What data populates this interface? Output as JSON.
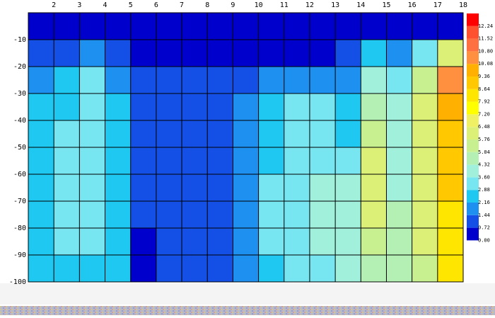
{
  "chart_data": {
    "type": "contour",
    "xlim": [
      1,
      18
    ],
    "ylim": [
      -100,
      0
    ],
    "xticks": [
      2,
      3,
      4,
      5,
      6,
      7,
      8,
      9,
      10,
      11,
      12,
      13,
      14,
      15,
      16,
      17,
      18
    ],
    "yticks": [
      -10,
      -20,
      -30,
      -40,
      -50,
      -60,
      -70,
      -80,
      -90,
      -100
    ],
    "grid": true,
    "x": [
      1.5,
      2.5,
      3.5,
      4.5,
      5.5,
      6.5,
      7.5,
      8.5,
      9.5,
      10.5,
      11.5,
      12.5,
      13.5,
      14.5,
      15.5,
      16.5,
      17.5
    ],
    "y": [
      -5,
      -15,
      -25,
      -35,
      -45,
      -55,
      -65,
      -75,
      -85,
      -95
    ],
    "z": [
      [
        0.3,
        0.3,
        0.3,
        0.3,
        0.3,
        0.3,
        0.3,
        0.3,
        0.3,
        0.3,
        0.3,
        0.3,
        0.3,
        0.3,
        0.3,
        0.5,
        0.4
      ],
      [
        1.2,
        1.0,
        1.5,
        1.2,
        0.5,
        0.5,
        0.5,
        0.5,
        0.5,
        0.6,
        0.6,
        0.6,
        1.0,
        2.5,
        1.5,
        3.2,
        6.0
      ],
      [
        1.8,
        2.2,
        2.9,
        2.0,
        0.9,
        1.2,
        0.9,
        1.0,
        1.3,
        1.5,
        1.5,
        1.5,
        2.0,
        4.0,
        3.0,
        5.5,
        10.5
      ],
      [
        2.2,
        2.5,
        2.9,
        2.4,
        1.0,
        1.0,
        1.0,
        1.1,
        1.6,
        2.3,
        2.9,
        2.9,
        2.6,
        4.5,
        3.6,
        6.0,
        9.5
      ],
      [
        2.3,
        2.9,
        3.0,
        2.5,
        1.0,
        1.0,
        1.0,
        1.2,
        1.8,
        2.6,
        3.2,
        3.4,
        2.4,
        5.3,
        4.0,
        6.2,
        9.2
      ],
      [
        2.3,
        2.9,
        3.0,
        2.5,
        1.0,
        1.0,
        1.0,
        1.2,
        1.9,
        2.8,
        3.4,
        3.5,
        3.0,
        5.8,
        4.2,
        6.3,
        9.0
      ],
      [
        2.2,
        3.0,
        3.0,
        2.5,
        0.8,
        1.0,
        1.0,
        1.2,
        2.0,
        2.9,
        3.5,
        3.7,
        3.8,
        6.0,
        4.3,
        6.2,
        8.8
      ],
      [
        2.3,
        2.9,
        3.0,
        2.5,
        0.9,
        1.0,
        1.0,
        1.2,
        2.0,
        2.9,
        3.5,
        3.7,
        3.9,
        5.9,
        4.4,
        6.1,
        8.6
      ],
      [
        2.4,
        2.9,
        2.9,
        2.4,
        0.6,
        1.0,
        1.0,
        1.2,
        2.0,
        2.9,
        3.4,
        3.6,
        3.9,
        5.5,
        4.5,
        5.9,
        8.3
      ],
      [
        2.3,
        2.8,
        2.8,
        2.3,
        0.4,
        1.0,
        1.0,
        1.1,
        2.0,
        2.8,
        3.3,
        3.5,
        3.8,
        5.0,
        4.4,
        5.5,
        8.0
      ]
    ],
    "levels": [
      {
        "value": 0,
        "label": "0.00"
      },
      {
        "value": 0.72,
        "label": "0.72"
      },
      {
        "value": 1.44,
        "label": "1.44"
      },
      {
        "value": 2.16,
        "label": "2.16"
      },
      {
        "value": 2.88,
        "label": "2.88"
      },
      {
        "value": 3.6,
        "label": "3.60"
      },
      {
        "value": 4.32,
        "label": "4.32"
      },
      {
        "value": 5.04,
        "label": "5.04"
      },
      {
        "value": 5.76,
        "label": "5.76"
      },
      {
        "value": 6.48,
        "label": "6.48"
      },
      {
        "value": 7.2,
        "label": "7.20"
      },
      {
        "value": 7.92,
        "label": "7.92"
      },
      {
        "value": 8.64,
        "label": "8.64"
      },
      {
        "value": 9.36,
        "label": "9.36"
      },
      {
        "value": 10.08,
        "label": "10.08"
      },
      {
        "value": 10.8,
        "label": "10.80"
      },
      {
        "value": 11.52,
        "label": "11.52"
      },
      {
        "value": 12.24,
        "label": "12.24"
      }
    ],
    "colors": [
      "#0000cc",
      "#1450e6",
      "#1e90f0",
      "#1ec8f0",
      "#78e6f0",
      "#a0f0dc",
      "#b4f0b4",
      "#c8f090",
      "#dcf078",
      "#f0f064",
      "#ffff00",
      "#ffe600",
      "#ffc800",
      "#ffb000",
      "#ff9040",
      "#ff7040",
      "#ff5030",
      "#ff0000"
    ]
  }
}
